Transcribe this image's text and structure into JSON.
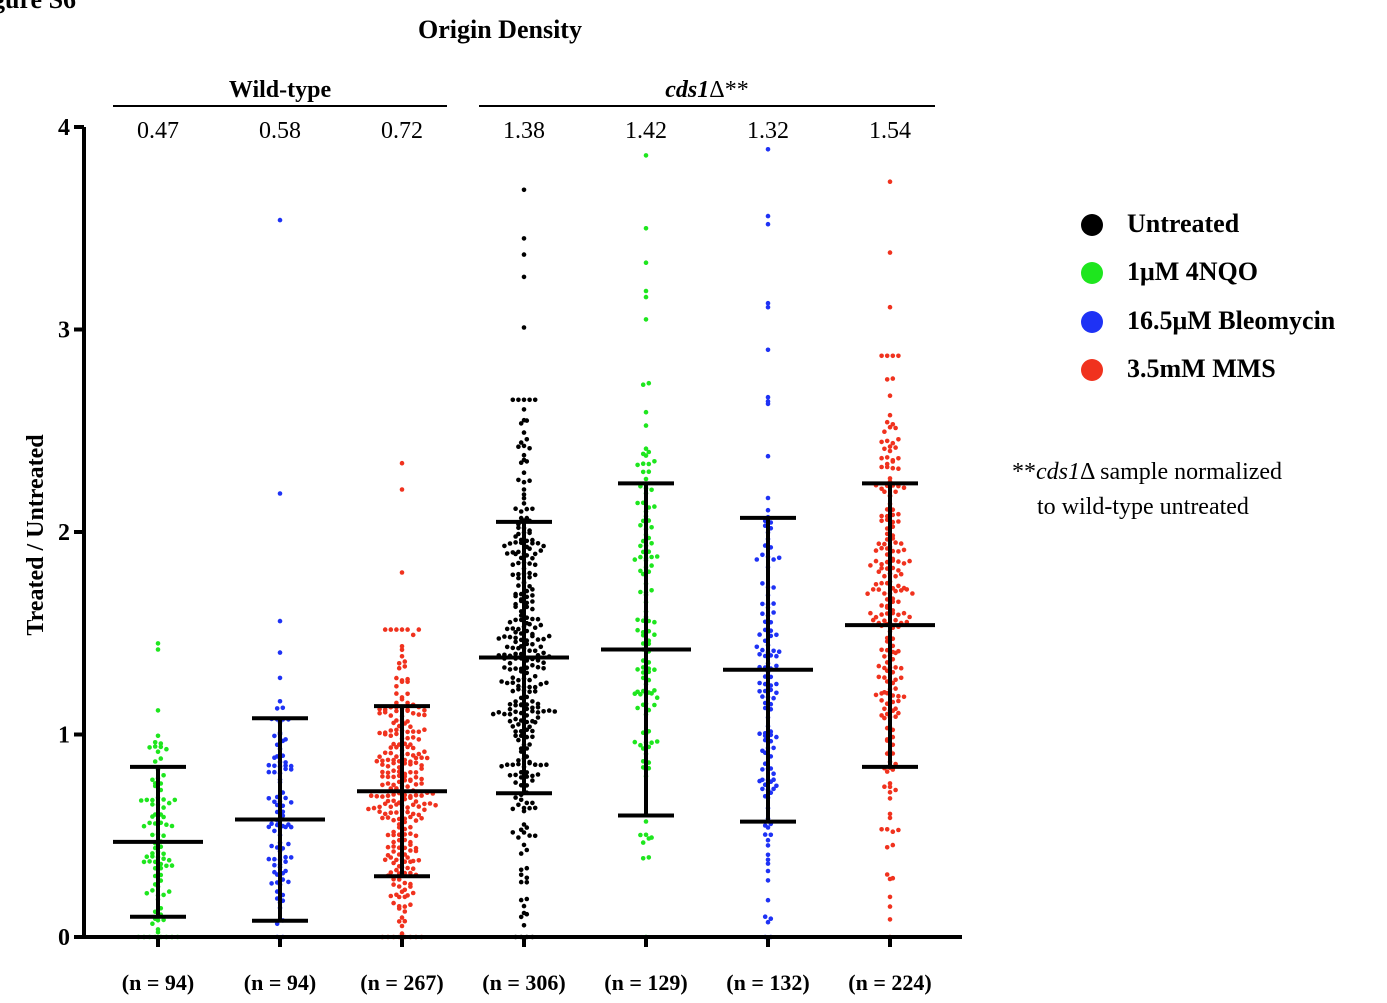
{
  "figure_label": "gure S6",
  "chart_data": {
    "type": "scatter",
    "subtype": "dot-plot with mean and SD error bars",
    "title": "Origin Density",
    "ylabel": "Treated / Untreated",
    "ylim": [
      0,
      4
    ],
    "yticks": [
      "0",
      "1",
      "2",
      "3",
      "4"
    ],
    "groups": [
      {
        "label": "Wild-type",
        "label_style": "bold",
        "suffix": "",
        "spans": [
          0,
          2
        ]
      },
      {
        "label": "cds1",
        "label_style": "bold-italic",
        "suffix": "Δ**",
        "spans": [
          3,
          6
        ]
      }
    ],
    "categories": [
      {
        "n_label": "(n = 94)",
        "mean_label": "0.47",
        "mean": 0.47,
        "lower": 0.1,
        "upper": 0.84,
        "series": "1μM 4NQO",
        "n": 94,
        "spread": 0.32,
        "outliers": [
          1.45,
          1.42
        ]
      },
      {
        "n_label": "(n = 94)",
        "mean_label": "0.58",
        "mean": 0.58,
        "lower": 0.08,
        "upper": 1.08,
        "series": "16.5μM Bleomycin",
        "n": 94,
        "spread": 0.33,
        "outliers": [
          3.54,
          2.19,
          1.56
        ]
      },
      {
        "n_label": "(n = 267)",
        "mean_label": "0.72",
        "mean": 0.72,
        "lower": 0.3,
        "upper": 1.14,
        "series": "3.5mM MMS",
        "n": 267,
        "spread": 0.37,
        "outliers": [
          2.34,
          2.21,
          1.8
        ]
      },
      {
        "n_label": "(n = 306)",
        "mean_label": "1.38",
        "mean": 1.38,
        "lower": 0.71,
        "upper": 2.05,
        "series": "Untreated",
        "n": 306,
        "spread": 0.6,
        "outliers": [
          3.69,
          3.45,
          3.37,
          3.26,
          3.01
        ]
      },
      {
        "n_label": "(n = 129)",
        "mean_label": "1.42",
        "mean": 1.42,
        "lower": 0.6,
        "upper": 2.24,
        "series": "1μM 4NQO",
        "n": 129,
        "spread": 0.62,
        "outliers": [
          3.86,
          3.5,
          3.33,
          3.19,
          3.16,
          3.05
        ]
      },
      {
        "n_label": "(n = 132)",
        "mean_label": "1.32",
        "mean": 1.32,
        "lower": 0.57,
        "upper": 2.07,
        "series": "16.5μM Bleomycin",
        "n": 132,
        "spread": 0.55,
        "outliers": [
          3.89,
          3.56,
          3.52,
          3.13,
          3.11,
          2.9
        ]
      },
      {
        "n_label": "(n = 224)",
        "mean_label": "1.54",
        "mean": 1.54,
        "lower": 0.84,
        "upper": 2.24,
        "series": "3.5mM MMS",
        "n": 224,
        "spread": 0.6,
        "outliers": [
          3.73,
          3.38,
          3.11
        ]
      }
    ],
    "series": [
      {
        "name": "Untreated",
        "color": "#000000"
      },
      {
        "name": "1μM 4NQO",
        "color": "#1ee61e"
      },
      {
        "name": "16.5μM Bleomycin",
        "color": "#1e32f5"
      },
      {
        "name": "3.5mM MMS",
        "color": "#f0321e"
      }
    ],
    "legend_position": "right",
    "footnote": {
      "prefix": "**",
      "italic": "cds1",
      "after": "Δ sample normalized",
      "line2": "to wild-type untreated"
    }
  }
}
